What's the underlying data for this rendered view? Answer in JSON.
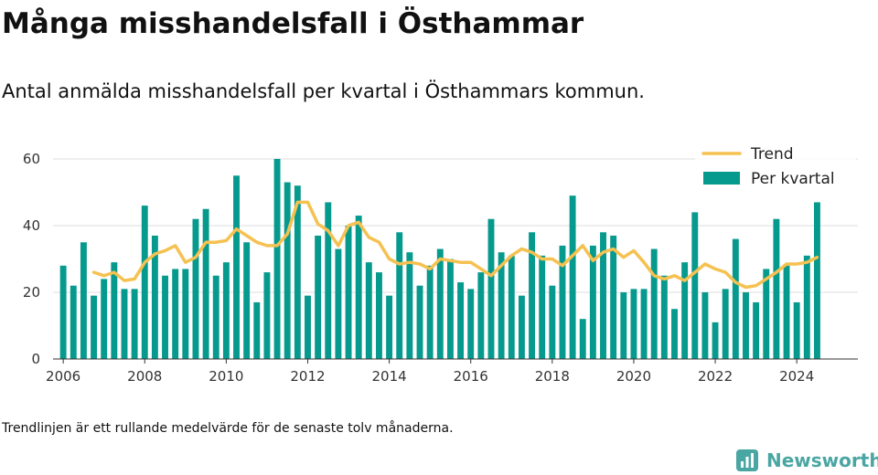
{
  "header": {
    "title": "Många misshandelsfall i Östhammar",
    "subtitle": "Antal anmälda misshandelsfall per kvartal i Östhammars kommun."
  },
  "footer": {
    "note": "Trendlinjen är ett rullande medelvärde för de senaste tolv månaderna.",
    "brand": "Newsworthy"
  },
  "colors": {
    "bar": "#069a8e",
    "trend": "#f5c150",
    "grid": "#dddddd",
    "brand": "#4aa6a3"
  },
  "icons": {
    "brand_logo": "bar-chart-logo-icon"
  },
  "chart_data": {
    "type": "bar",
    "legend_position": "top-right",
    "grid": "horizontal",
    "ylim": [
      0,
      60
    ],
    "yticks": [
      0,
      20,
      40,
      60
    ],
    "xlim": [
      2005.75,
      2025.5
    ],
    "xticks": [
      2006,
      2008,
      2010,
      2012,
      2014,
      2016,
      2018,
      2020,
      2022,
      2024
    ],
    "x_start": 2006,
    "x_step": 0.25,
    "series": [
      {
        "name": "Per kvartal",
        "type": "bar",
        "values": [
          28,
          22,
          35,
          19,
          24,
          29,
          21,
          21,
          46,
          37,
          25,
          27,
          27,
          42,
          45,
          25,
          29,
          55,
          35,
          17,
          26,
          60,
          53,
          52,
          19,
          37,
          47,
          33,
          40,
          43,
          29,
          26,
          19,
          38,
          32,
          22,
          28,
          33,
          30,
          23,
          21,
          26,
          42,
          32,
          31,
          19,
          38,
          31,
          22,
          34,
          49,
          12,
          34,
          38,
          37,
          20,
          21,
          21,
          33,
          25,
          15,
          29,
          44,
          20,
          11,
          21,
          36,
          20,
          17,
          27,
          42,
          28,
          17,
          31,
          47
        ]
      },
      {
        "name": "Trend",
        "type": "line",
        "values": [
          null,
          null,
          null,
          26,
          25,
          26,
          23.5,
          24,
          29,
          31.5,
          32.5,
          34,
          29,
          30.5,
          35,
          35,
          35.5,
          39,
          37,
          35,
          34,
          34,
          37.5,
          47,
          47,
          40.5,
          38.5,
          34,
          40,
          41,
          36.5,
          35,
          30,
          28.5,
          29,
          28.5,
          27,
          30,
          29.5,
          29,
          29,
          27,
          25,
          28,
          31,
          33,
          32,
          30,
          30,
          28,
          31,
          34,
          29.5,
          32,
          33,
          30.5,
          32.5,
          29,
          25,
          24,
          25,
          23.5,
          26,
          28.5,
          27,
          26,
          23,
          21.5,
          22,
          24,
          26,
          28.5,
          28.5,
          29,
          30.5
        ]
      }
    ]
  }
}
